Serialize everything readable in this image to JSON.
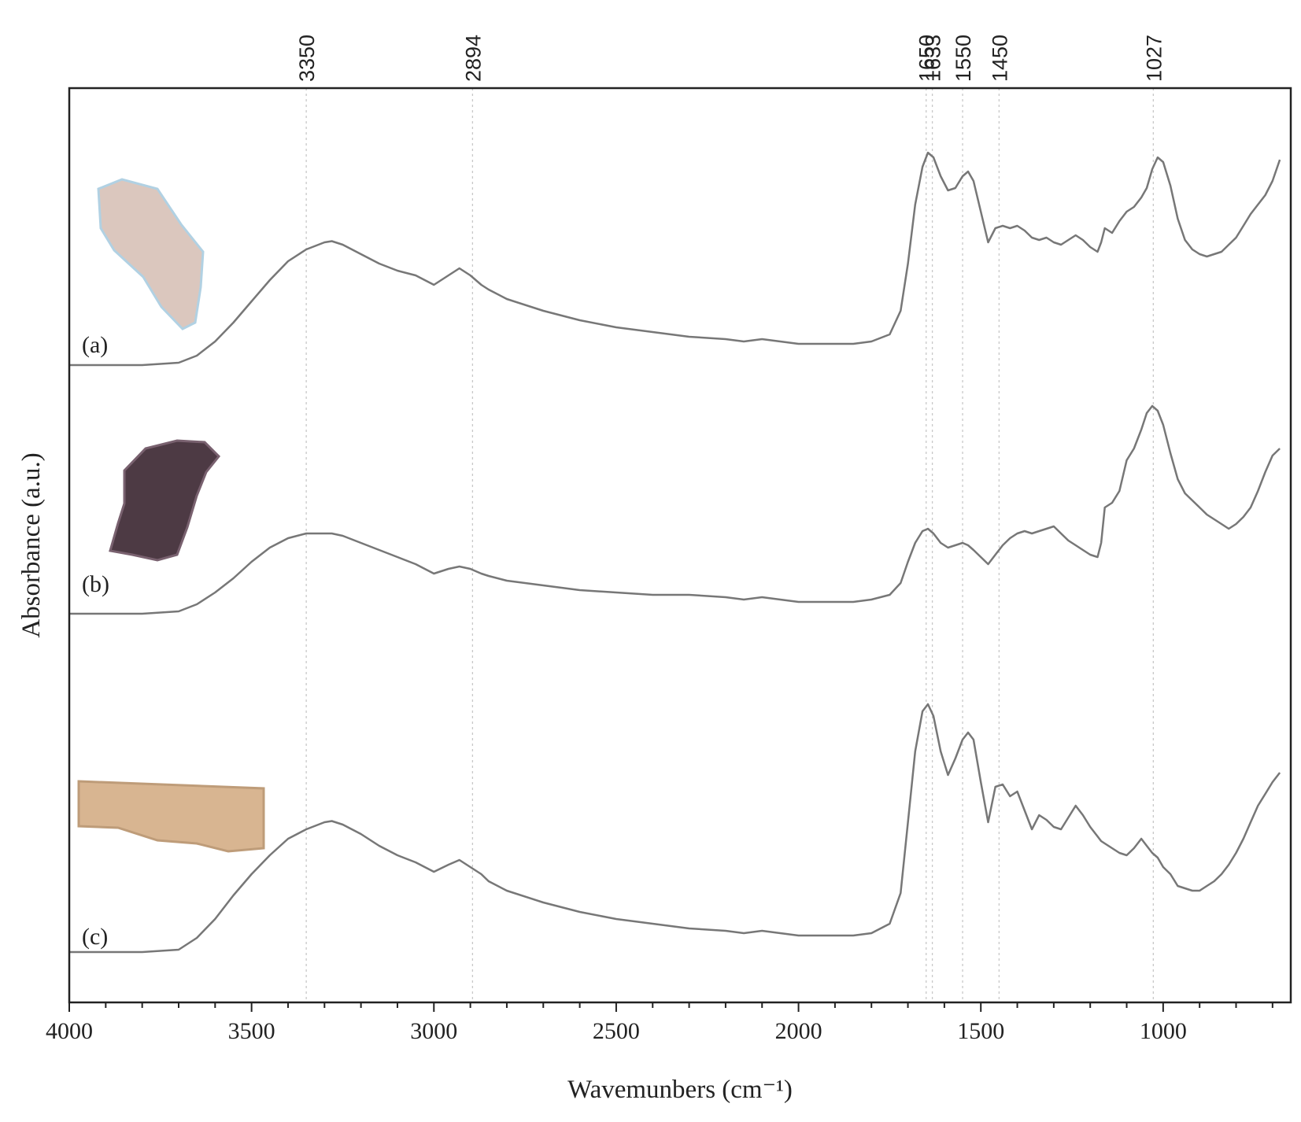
{
  "chart_data": {
    "type": "line",
    "title": "",
    "xlabel": "Wavemunbers (cm⁻¹)",
    "ylabel": "Absorbance (a.u.)",
    "xlim": [
      4000,
      650
    ],
    "x_reversed": true,
    "x_ticks": [
      4000,
      3500,
      3000,
      2500,
      2000,
      1500,
      1000
    ],
    "y_tick_labels": false,
    "grid": false,
    "legend": "none",
    "reference_lines": [
      {
        "x": 3350,
        "label": "3350"
      },
      {
        "x": 2894,
        "label": "2894"
      },
      {
        "x": 1650,
        "label": "1650"
      },
      {
        "x": 1633,
        "label": "1633"
      },
      {
        "x": 1550,
        "label": "1550"
      },
      {
        "x": 1450,
        "label": "1450"
      },
      {
        "x": 1027,
        "label": "1027"
      }
    ],
    "line_color": "#777777",
    "series": [
      {
        "name": "(a)",
        "x": [
          4000,
          3900,
          3800,
          3700,
          3650,
          3600,
          3550,
          3500,
          3450,
          3400,
          3350,
          3300,
          3280,
          3250,
          3200,
          3150,
          3100,
          3050,
          3000,
          2960,
          2930,
          2900,
          2870,
          2850,
          2800,
          2700,
          2600,
          2500,
          2400,
          2300,
          2200,
          2150,
          2100,
          2050,
          2000,
          1950,
          1900,
          1850,
          1800,
          1750,
          1720,
          1700,
          1680,
          1660,
          1645,
          1630,
          1610,
          1590,
          1570,
          1550,
          1535,
          1520,
          1500,
          1480,
          1460,
          1440,
          1420,
          1400,
          1380,
          1360,
          1340,
          1320,
          1300,
          1280,
          1260,
          1240,
          1220,
          1200,
          1180,
          1170,
          1160,
          1140,
          1120,
          1100,
          1080,
          1060,
          1045,
          1030,
          1015,
          1000,
          980,
          960,
          940,
          920,
          900,
          880,
          860,
          840,
          820,
          800,
          780,
          760,
          740,
          720,
          700,
          680
        ],
        "y": [
          0.02,
          0.02,
          0.02,
          0.03,
          0.06,
          0.12,
          0.2,
          0.29,
          0.38,
          0.46,
          0.51,
          0.54,
          0.545,
          0.53,
          0.49,
          0.45,
          0.42,
          0.4,
          0.36,
          0.4,
          0.43,
          0.4,
          0.36,
          0.34,
          0.3,
          0.25,
          0.21,
          0.18,
          0.16,
          0.14,
          0.13,
          0.12,
          0.13,
          0.12,
          0.11,
          0.11,
          0.11,
          0.11,
          0.12,
          0.15,
          0.25,
          0.45,
          0.7,
          0.86,
          0.92,
          0.9,
          0.82,
          0.76,
          0.77,
          0.82,
          0.84,
          0.8,
          0.67,
          0.54,
          0.6,
          0.61,
          0.6,
          0.61,
          0.59,
          0.56,
          0.55,
          0.56,
          0.54,
          0.53,
          0.55,
          0.57,
          0.55,
          0.52,
          0.5,
          0.54,
          0.6,
          0.58,
          0.63,
          0.67,
          0.69,
          0.73,
          0.77,
          0.85,
          0.9,
          0.88,
          0.78,
          0.64,
          0.55,
          0.51,
          0.49,
          0.48,
          0.49,
          0.5,
          0.53,
          0.56,
          0.61,
          0.66,
          0.7,
          0.74,
          0.8,
          0.89
        ]
      },
      {
        "name": "(b)",
        "x": [
          4000,
          3900,
          3800,
          3700,
          3650,
          3600,
          3550,
          3500,
          3450,
          3400,
          3350,
          3300,
          3280,
          3250,
          3200,
          3150,
          3100,
          3050,
          3000,
          2960,
          2930,
          2900,
          2870,
          2850,
          2800,
          2700,
          2600,
          2500,
          2400,
          2300,
          2200,
          2150,
          2100,
          2050,
          2000,
          1950,
          1900,
          1850,
          1800,
          1750,
          1720,
          1700,
          1680,
          1660,
          1645,
          1630,
          1610,
          1590,
          1570,
          1550,
          1535,
          1520,
          1500,
          1480,
          1460,
          1440,
          1420,
          1400,
          1380,
          1360,
          1340,
          1320,
          1300,
          1280,
          1260,
          1240,
          1220,
          1200,
          1180,
          1170,
          1160,
          1140,
          1120,
          1100,
          1080,
          1060,
          1045,
          1030,
          1015,
          1000,
          980,
          960,
          940,
          920,
          900,
          880,
          860,
          840,
          820,
          800,
          780,
          760,
          740,
          720,
          700,
          680
        ],
        "y": [
          0.0,
          0.0,
          0.0,
          0.01,
          0.04,
          0.09,
          0.15,
          0.22,
          0.28,
          0.32,
          0.34,
          0.34,
          0.34,
          0.33,
          0.3,
          0.27,
          0.24,
          0.21,
          0.17,
          0.19,
          0.2,
          0.19,
          0.17,
          0.16,
          0.14,
          0.12,
          0.1,
          0.09,
          0.08,
          0.08,
          0.07,
          0.06,
          0.07,
          0.06,
          0.05,
          0.05,
          0.05,
          0.05,
          0.06,
          0.08,
          0.13,
          0.22,
          0.3,
          0.35,
          0.36,
          0.34,
          0.3,
          0.28,
          0.29,
          0.3,
          0.29,
          0.27,
          0.24,
          0.21,
          0.25,
          0.29,
          0.32,
          0.34,
          0.35,
          0.34,
          0.35,
          0.36,
          0.37,
          0.34,
          0.31,
          0.29,
          0.27,
          0.25,
          0.24,
          0.3,
          0.45,
          0.47,
          0.52,
          0.65,
          0.7,
          0.78,
          0.85,
          0.88,
          0.86,
          0.8,
          0.68,
          0.57,
          0.51,
          0.48,
          0.45,
          0.42,
          0.4,
          0.38,
          0.36,
          0.38,
          0.41,
          0.45,
          0.52,
          0.6,
          0.67,
          0.7
        ]
      },
      {
        "name": "(c)",
        "x": [
          4000,
          3900,
          3800,
          3700,
          3650,
          3600,
          3550,
          3500,
          3450,
          3400,
          3350,
          3300,
          3280,
          3250,
          3200,
          3150,
          3100,
          3050,
          3000,
          2960,
          2930,
          2900,
          2870,
          2850,
          2800,
          2700,
          2600,
          2500,
          2400,
          2300,
          2200,
          2150,
          2100,
          2050,
          2000,
          1950,
          1900,
          1850,
          1800,
          1750,
          1720,
          1700,
          1680,
          1660,
          1645,
          1630,
          1610,
          1590,
          1570,
          1550,
          1535,
          1520,
          1500,
          1480,
          1460,
          1440,
          1420,
          1400,
          1380,
          1360,
          1340,
          1320,
          1300,
          1280,
          1260,
          1240,
          1220,
          1200,
          1180,
          1170,
          1160,
          1140,
          1120,
          1100,
          1080,
          1060,
          1045,
          1030,
          1015,
          1000,
          980,
          960,
          940,
          920,
          900,
          880,
          860,
          840,
          820,
          800,
          780,
          760,
          740,
          720,
          700,
          680
        ],
        "y": [
          0.0,
          0.0,
          0.0,
          0.01,
          0.06,
          0.14,
          0.24,
          0.33,
          0.41,
          0.48,
          0.52,
          0.55,
          0.555,
          0.54,
          0.5,
          0.45,
          0.41,
          0.38,
          0.34,
          0.37,
          0.39,
          0.36,
          0.33,
          0.3,
          0.26,
          0.21,
          0.17,
          0.14,
          0.12,
          0.1,
          0.09,
          0.08,
          0.09,
          0.08,
          0.07,
          0.07,
          0.07,
          0.07,
          0.08,
          0.12,
          0.25,
          0.55,
          0.85,
          1.02,
          1.05,
          1.0,
          0.85,
          0.75,
          0.82,
          0.9,
          0.93,
          0.9,
          0.72,
          0.55,
          0.7,
          0.71,
          0.66,
          0.68,
          0.6,
          0.52,
          0.58,
          0.56,
          0.53,
          0.52,
          0.57,
          0.62,
          0.58,
          0.53,
          0.49,
          0.47,
          0.46,
          0.44,
          0.42,
          0.41,
          0.44,
          0.48,
          0.45,
          0.42,
          0.4,
          0.36,
          0.33,
          0.28,
          0.27,
          0.26,
          0.26,
          0.28,
          0.3,
          0.33,
          0.37,
          0.42,
          0.48,
          0.55,
          0.62,
          0.67,
          0.72,
          0.76
        ]
      }
    ],
    "sample_swatches": [
      {
        "series": "(a)",
        "color": "#d8c1b7",
        "edge": "#a9cde0"
      },
      {
        "series": "(b)",
        "color": "#3a2530",
        "edge": "#6b5060"
      },
      {
        "series": "(c)",
        "color": "#d4ae86",
        "edge": "#b8926b"
      }
    ]
  }
}
